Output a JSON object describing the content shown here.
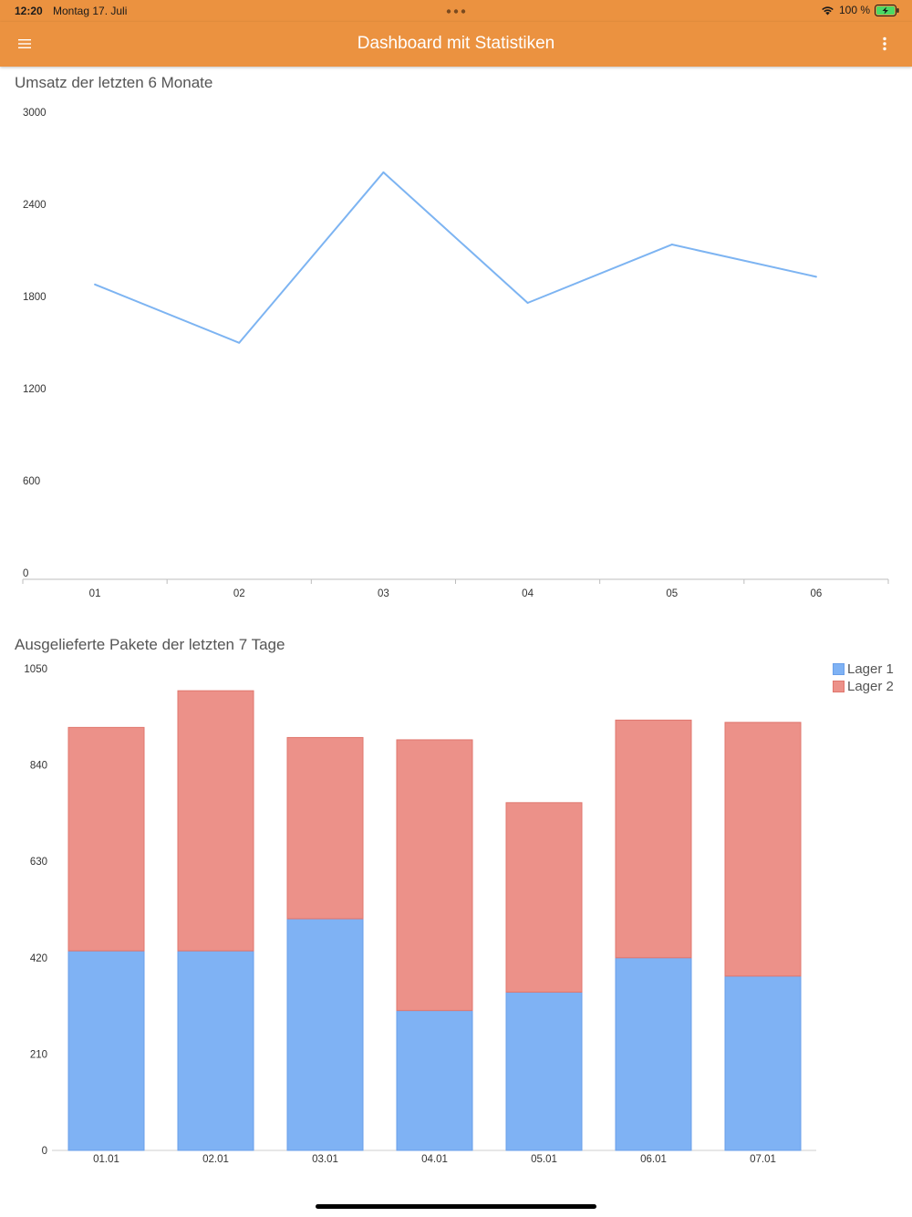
{
  "status_bar": {
    "time": "12:20",
    "date": "Montag 17. Juli",
    "battery_text": "100 %"
  },
  "app_bar": {
    "title": "Dashboard mit Statistiken",
    "menu_icon": "hamburger-menu-icon",
    "more_icon": "more-vertical-icon"
  },
  "colors": {
    "app_bar_bg": "#eb9240",
    "line": "#7db4f2",
    "lager1": "#7fb2f4",
    "lager2": "#ec9189",
    "lager1_stroke": "#6a9fe9",
    "lager2_stroke": "#e0766d"
  },
  "chart_data": [
    {
      "id": "revenue",
      "type": "line",
      "title": "Umsatz der letzten 6 Monate",
      "categories": [
        "01",
        "02",
        "03",
        "04",
        "05",
        "06"
      ],
      "values": [
        1920,
        1540,
        2650,
        1800,
        2180,
        1970
      ],
      "ylim": [
        0,
        3000
      ],
      "yticks": [
        0,
        600,
        1200,
        1800,
        2400,
        3000
      ],
      "xlabel": "",
      "ylabel": ""
    },
    {
      "id": "packages",
      "type": "bar",
      "stacked": true,
      "title": "Ausgelieferte Pakete der letzten 7 Tage",
      "categories": [
        "01.01",
        "02.01",
        "03.01",
        "04.01",
        "05.01",
        "06.01",
        "07.01"
      ],
      "series": [
        {
          "name": "Lager 1",
          "values": [
            435,
            435,
            505,
            305,
            345,
            420,
            380
          ]
        },
        {
          "name": "Lager 2",
          "values": [
            487,
            567,
            395,
            590,
            413,
            518,
            553
          ]
        }
      ],
      "ylim": [
        0,
        1050
      ],
      "yticks": [
        0,
        210,
        420,
        630,
        840,
        1050
      ],
      "legend_position": "top-right",
      "xlabel": "",
      "ylabel": ""
    }
  ]
}
